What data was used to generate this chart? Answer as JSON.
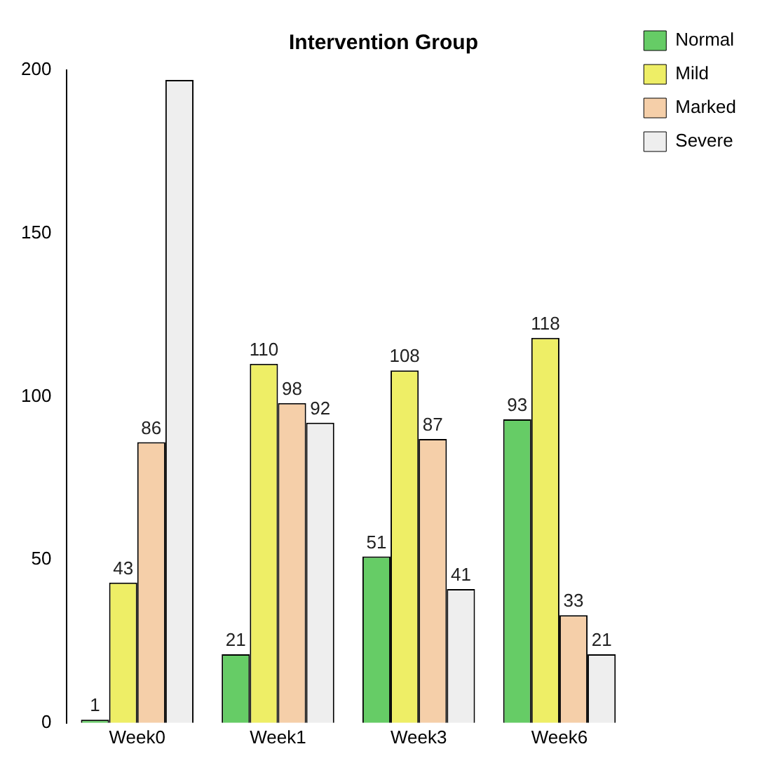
{
  "chart_data": {
    "type": "bar",
    "title": "Intervention Group",
    "categories": [
      "Week0",
      "Week1",
      "Week3",
      "Week6"
    ],
    "series": [
      {
        "name": "Normal",
        "color": "#66cc66",
        "values": [
          1,
          21,
          51,
          93
        ],
        "value_labels": [
          "1",
          "21",
          "51",
          "93"
        ]
      },
      {
        "name": "Mild",
        "color": "#eeee66",
        "values": [
          43,
          110,
          108,
          118
        ],
        "value_labels": [
          "43",
          "110",
          "108",
          "118"
        ]
      },
      {
        "name": "Marked",
        "color": "#f5cfa9",
        "values": [
          86,
          98,
          87,
          33
        ],
        "value_labels": [
          "86",
          "98",
          "87",
          "33"
        ]
      },
      {
        "name": "Severe",
        "color": "#eeeeee",
        "values": [
          197,
          92,
          41,
          21
        ],
        "value_labels": [
          null,
          "92",
          "41",
          "21"
        ]
      }
    ],
    "ylim": [
      0,
      200
    ],
    "yticks": [
      0,
      50,
      100,
      150,
      200
    ],
    "grid": false,
    "legend": "top right"
  }
}
